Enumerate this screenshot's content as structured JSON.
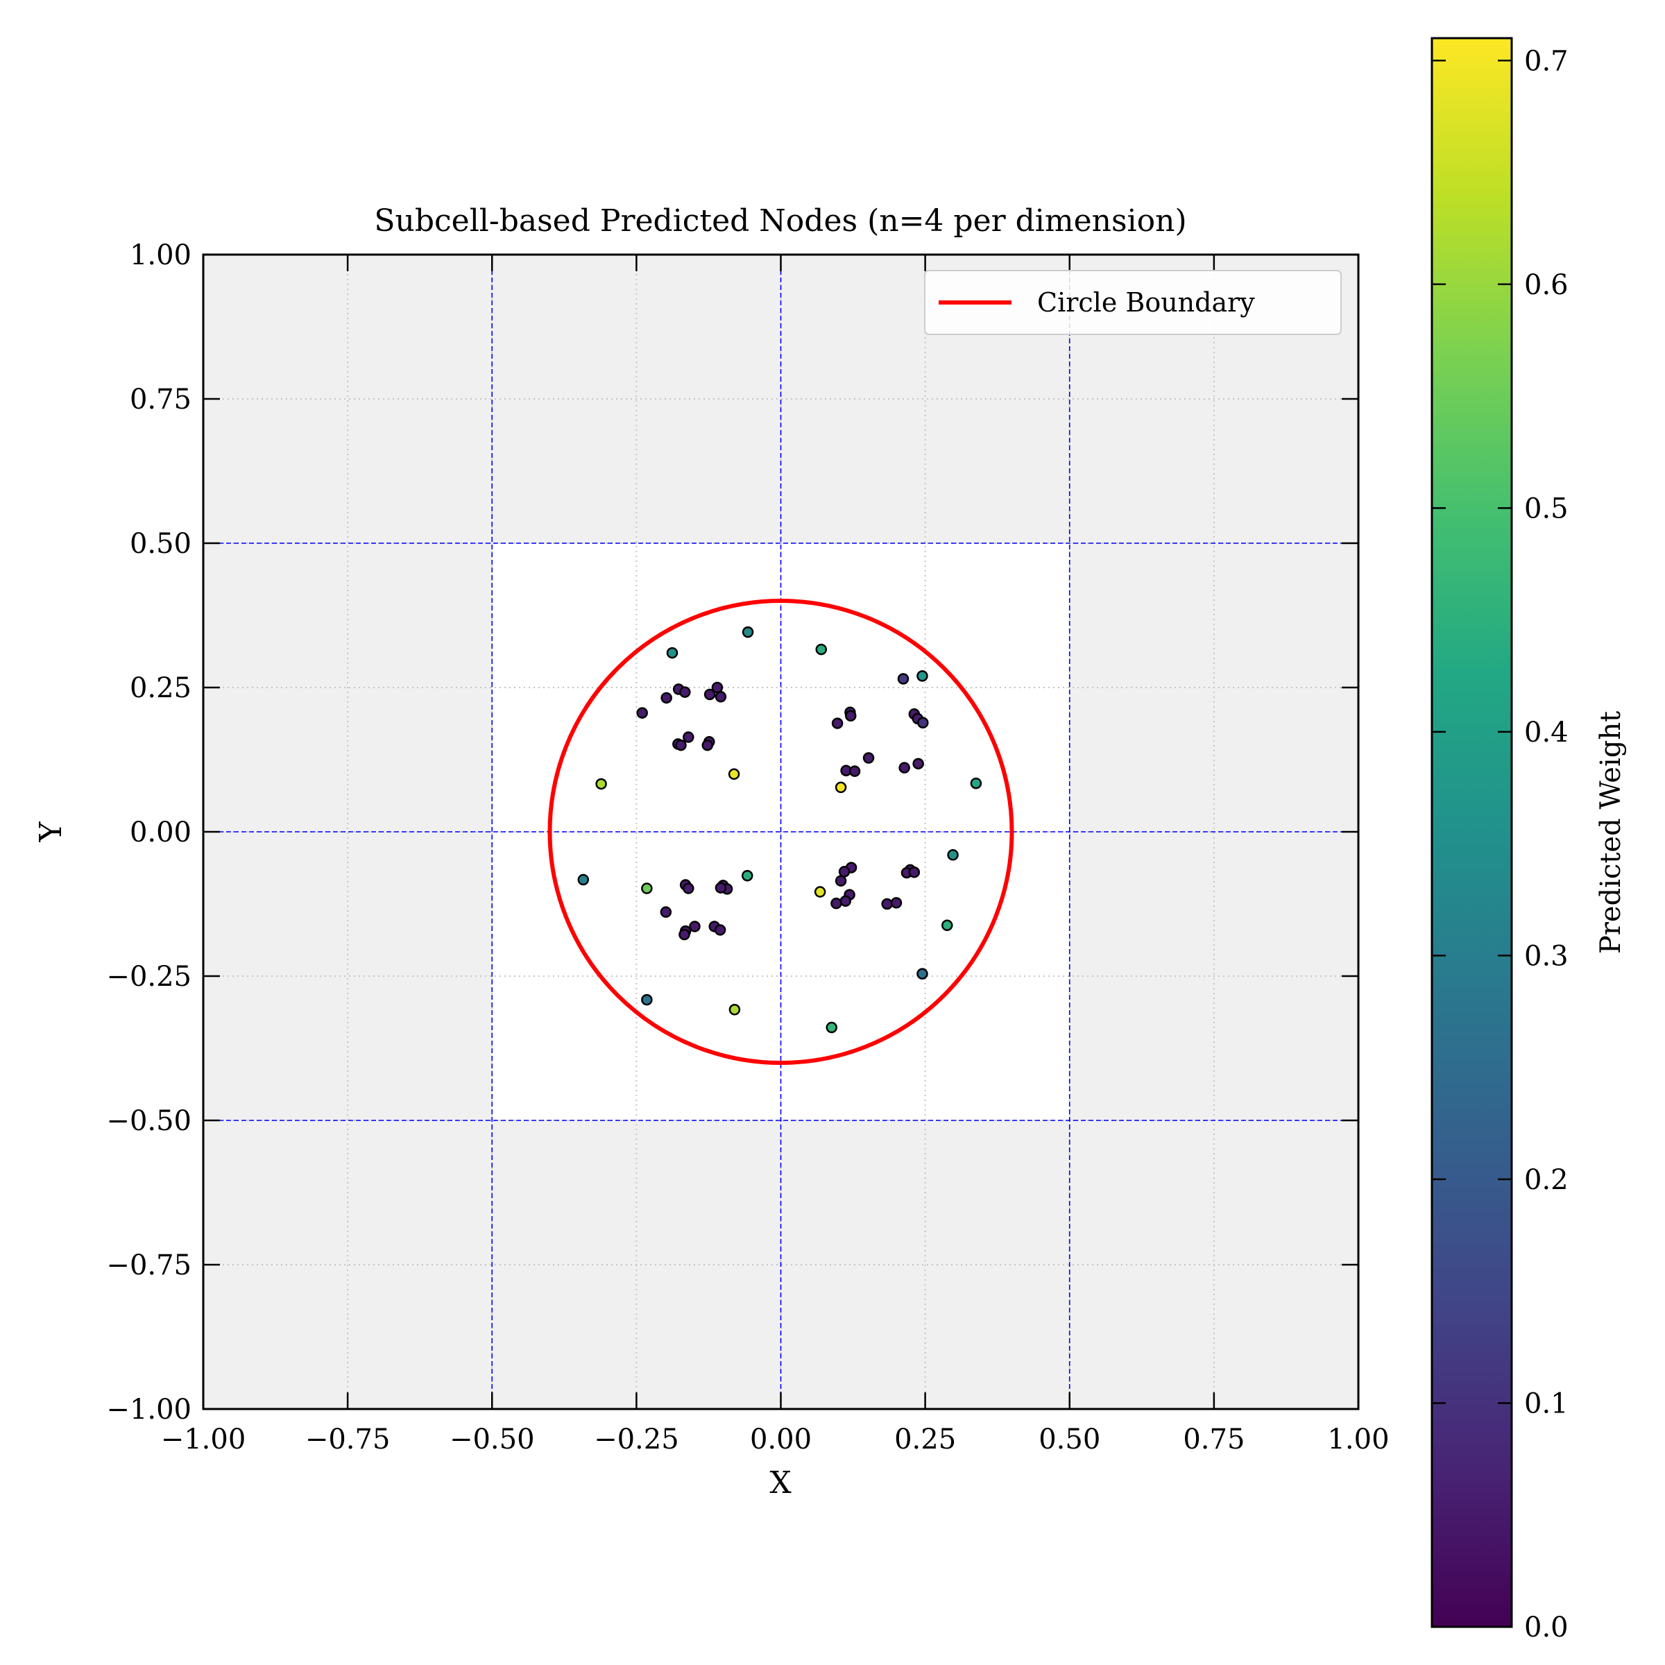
{
  "chart_data": {
    "type": "scatter",
    "title": "Subcell-based Predicted Nodes (n=4 per dimension)",
    "xlabel": "X",
    "ylabel": "Y",
    "xlim": [
      -1.0,
      1.0
    ],
    "ylim": [
      -1.0,
      1.0
    ],
    "xticks": [
      "−1.00",
      "−0.75",
      "−0.50",
      "−0.25",
      "0.00",
      "0.25",
      "0.50",
      "0.75",
      "1.00"
    ],
    "yticks": [
      "−1.00",
      "−0.75",
      "−0.50",
      "−0.25",
      "0.00",
      "0.25",
      "0.50",
      "0.75",
      "1.00"
    ],
    "grid": "dotted",
    "domain_box": [
      -0.5,
      0.5
    ],
    "subcell_lines": [
      -0.5,
      0.0,
      0.5
    ],
    "legend": {
      "position": "top-right",
      "entries": [
        "Circle Boundary"
      ]
    },
    "circle": {
      "cx": 0.0,
      "cy": 0.0,
      "r": 0.4,
      "color": "#ff0000",
      "label": "Circle Boundary"
    },
    "colorbar": {
      "label": "Predicted Weight",
      "colormap": "viridis",
      "min": 0.0,
      "max": 0.71,
      "ticks": [
        "0.0",
        "0.1",
        "0.2",
        "0.3",
        "0.4",
        "0.5",
        "0.6",
        "0.7"
      ]
    },
    "points": [
      {
        "x": -0.057,
        "y": 0.346,
        "w": 0.34
      },
      {
        "x": -0.188,
        "y": 0.31,
        "w": 0.36
      },
      {
        "x": 0.07,
        "y": 0.316,
        "w": 0.44
      },
      {
        "x": -0.177,
        "y": 0.247,
        "w": 0.05
      },
      {
        "x": -0.166,
        "y": 0.242,
        "w": 0.05
      },
      {
        "x": -0.198,
        "y": 0.232,
        "w": 0.05
      },
      {
        "x": -0.11,
        "y": 0.25,
        "w": 0.05
      },
      {
        "x": -0.123,
        "y": 0.238,
        "w": 0.05
      },
      {
        "x": -0.104,
        "y": 0.234,
        "w": 0.05
      },
      {
        "x": -0.24,
        "y": 0.206,
        "w": 0.05
      },
      {
        "x": -0.16,
        "y": 0.164,
        "w": 0.05
      },
      {
        "x": -0.178,
        "y": 0.152,
        "w": 0.05
      },
      {
        "x": -0.173,
        "y": 0.15,
        "w": 0.05
      },
      {
        "x": -0.124,
        "y": 0.156,
        "w": 0.05
      },
      {
        "x": -0.127,
        "y": 0.15,
        "w": 0.05
      },
      {
        "x": -0.081,
        "y": 0.1,
        "w": 0.69
      },
      {
        "x": -0.311,
        "y": 0.083,
        "w": 0.62
      },
      {
        "x": 0.212,
        "y": 0.265,
        "w": 0.12
      },
      {
        "x": 0.245,
        "y": 0.27,
        "w": 0.38
      },
      {
        "x": 0.12,
        "y": 0.207,
        "w": 0.05
      },
      {
        "x": 0.121,
        "y": 0.201,
        "w": 0.05
      },
      {
        "x": 0.098,
        "y": 0.188,
        "w": 0.05
      },
      {
        "x": 0.231,
        "y": 0.204,
        "w": 0.05
      },
      {
        "x": 0.237,
        "y": 0.196,
        "w": 0.05
      },
      {
        "x": 0.246,
        "y": 0.189,
        "w": 0.1
      },
      {
        "x": 0.152,
        "y": 0.128,
        "w": 0.05
      },
      {
        "x": 0.238,
        "y": 0.118,
        "w": 0.05
      },
      {
        "x": 0.214,
        "y": 0.111,
        "w": 0.05
      },
      {
        "x": 0.113,
        "y": 0.106,
        "w": 0.05
      },
      {
        "x": 0.128,
        "y": 0.105,
        "w": 0.05
      },
      {
        "x": 0.104,
        "y": 0.077,
        "w": 0.7
      },
      {
        "x": 0.338,
        "y": 0.084,
        "w": 0.42
      },
      {
        "x": -0.342,
        "y": -0.083,
        "w": 0.31
      },
      {
        "x": -0.232,
        "y": -0.098,
        "w": 0.55
      },
      {
        "x": -0.058,
        "y": -0.076,
        "w": 0.44
      },
      {
        "x": -0.165,
        "y": -0.092,
        "w": 0.05
      },
      {
        "x": -0.16,
        "y": -0.098,
        "w": 0.05
      },
      {
        "x": -0.1,
        "y": -0.093,
        "w": 0.05
      },
      {
        "x": -0.093,
        "y": -0.099,
        "w": 0.05
      },
      {
        "x": -0.104,
        "y": -0.097,
        "w": 0.05
      },
      {
        "x": -0.199,
        "y": -0.139,
        "w": 0.05
      },
      {
        "x": -0.149,
        "y": -0.164,
        "w": 0.05
      },
      {
        "x": -0.115,
        "y": -0.164,
        "w": 0.05
      },
      {
        "x": -0.105,
        "y": -0.17,
        "w": 0.05
      },
      {
        "x": -0.165,
        "y": -0.172,
        "w": 0.05
      },
      {
        "x": -0.167,
        "y": -0.178,
        "w": 0.05
      },
      {
        "x": 0.068,
        "y": -0.104,
        "w": 0.68
      },
      {
        "x": 0.122,
        "y": -0.062,
        "w": 0.05
      },
      {
        "x": 0.11,
        "y": -0.069,
        "w": 0.05
      },
      {
        "x": 0.104,
        "y": -0.085,
        "w": 0.05
      },
      {
        "x": 0.224,
        "y": -0.066,
        "w": 0.05
      },
      {
        "x": 0.218,
        "y": -0.071,
        "w": 0.05
      },
      {
        "x": 0.231,
        "y": -0.07,
        "w": 0.05
      },
      {
        "x": 0.298,
        "y": -0.04,
        "w": 0.36
      },
      {
        "x": 0.119,
        "y": -0.109,
        "w": 0.05
      },
      {
        "x": 0.112,
        "y": -0.12,
        "w": 0.05
      },
      {
        "x": 0.096,
        "y": -0.124,
        "w": 0.05
      },
      {
        "x": 0.184,
        "y": -0.125,
        "w": 0.05
      },
      {
        "x": 0.2,
        "y": -0.123,
        "w": 0.05
      },
      {
        "x": 0.288,
        "y": -0.162,
        "w": 0.45
      },
      {
        "x": 0.245,
        "y": -0.246,
        "w": 0.26
      },
      {
        "x": -0.232,
        "y": -0.291,
        "w": 0.27
      },
      {
        "x": -0.08,
        "y": -0.308,
        "w": 0.62
      },
      {
        "x": 0.088,
        "y": -0.339,
        "w": 0.47
      }
    ]
  }
}
